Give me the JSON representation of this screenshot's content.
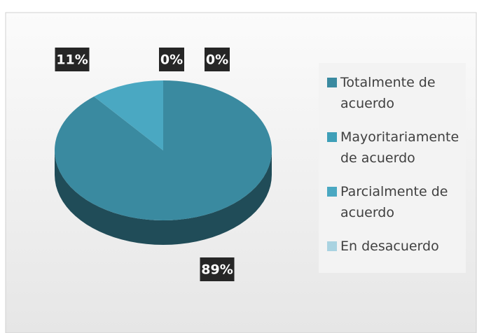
{
  "chart_data": {
    "type": "pie",
    "categories": [
      "Totalmente de acuerdo",
      "Mayoritariamente de acuerdo",
      "Parcialmente de acuerdo",
      "En desacuerdo"
    ],
    "values": [
      89,
      0,
      11,
      0
    ],
    "value_labels": [
      "89%",
      "0%",
      "11%",
      "0%"
    ],
    "colors": [
      "#3a8aa0",
      "#3e9fb8",
      "#4aa8c2",
      "#a9d3e1"
    ],
    "legend": "right"
  }
}
